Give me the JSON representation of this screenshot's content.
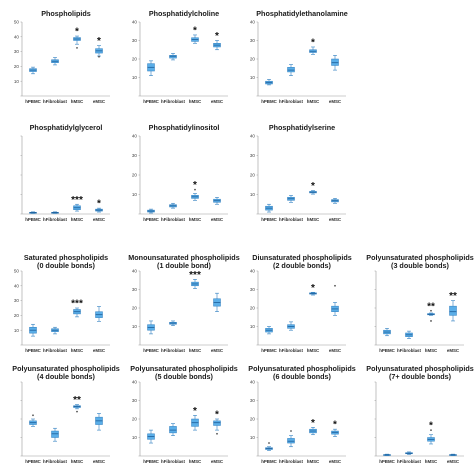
{
  "colors": {
    "box_fill": "#5aaee8",
    "box_stroke": "#2f7fc0",
    "median": "#1d5f9a",
    "axis": "#9a9a9a",
    "outlier": "#555555"
  },
  "chart_data": [
    {
      "type": "box",
      "title": [
        "Phospholipids"
      ],
      "ylim": [
        0,
        50
      ],
      "yticks": [
        "",
        "10",
        "20",
        "30",
        "40",
        "50"
      ],
      "categories": [
        "hPBMC",
        "hFibroblast",
        "hMSC",
        "eMSC"
      ],
      "boxes": [
        {
          "min": 15,
          "q1": 16.5,
          "median": 17.5,
          "q3": 18.5,
          "max": 19.5
        },
        {
          "min": 21,
          "q1": 22.5,
          "median": 23.5,
          "q3": 24.5,
          "max": 26
        },
        {
          "min": 35,
          "q1": 37.5,
          "median": 38.5,
          "q3": 39.5,
          "max": 40.5
        },
        {
          "min": 27,
          "q1": 29,
          "median": 30.5,
          "q3": 32,
          "max": 34
        }
      ],
      "outliers": [
        {
          "cat": 2,
          "value": 32.5
        },
        {
          "cat": 3,
          "value": 26.5
        }
      ],
      "stars": [
        "",
        "",
        "*",
        "*"
      ]
    },
    {
      "type": "box",
      "title": [
        "Phosphatidylcholine"
      ],
      "ylim": [
        0,
        40
      ],
      "yticks": [
        "",
        "10",
        "20",
        "30",
        "40"
      ],
      "categories": [
        "hPBMC",
        "hFibroblast",
        "hMSC",
        "eMSC"
      ],
      "boxes": [
        {
          "min": 11,
          "q1": 13.5,
          "median": 15.5,
          "q3": 17.5,
          "max": 19
        },
        {
          "min": 19.5,
          "q1": 20.5,
          "median": 21.5,
          "q3": 22,
          "max": 23
        },
        {
          "min": 28.5,
          "q1": 29.5,
          "median": 30.5,
          "q3": 31.5,
          "max": 33
        },
        {
          "min": 25,
          "q1": 26.5,
          "median": 27.5,
          "q3": 28.5,
          "max": 30
        }
      ],
      "outliers": [],
      "stars": [
        "",
        "",
        "*",
        "*"
      ]
    },
    {
      "type": "box",
      "title": [
        "Phosphatidylethanolamine"
      ],
      "ylim": [
        0,
        40
      ],
      "yticks": [
        "",
        "10",
        "20",
        "30",
        "40"
      ],
      "categories": [
        "hPBMC",
        "hFibroblast",
        "hMSC",
        "eMSC"
      ],
      "boxes": [
        {
          "min": 6,
          "q1": 6.5,
          "median": 7.2,
          "q3": 8,
          "max": 9
        },
        {
          "min": 11,
          "q1": 13,
          "median": 14,
          "q3": 15.5,
          "max": 17
        },
        {
          "min": 22.5,
          "q1": 23.5,
          "median": 24.2,
          "q3": 25,
          "max": 26.5
        },
        {
          "min": 14,
          "q1": 16.5,
          "median": 18,
          "q3": 20,
          "max": 22
        }
      ],
      "outliers": [],
      "stars": [
        "",
        "",
        "*",
        ""
      ]
    },
    {
      "type": "box",
      "title": [
        "Phosphatidylglycerol"
      ],
      "ylim": [
        0,
        40
      ],
      "yticks": [
        "",
        "",
        "",
        "",
        ""
      ],
      "categories": [
        "hPBMC",
        "hFibroblast",
        "hMSC",
        "eMSC"
      ],
      "boxes": [
        {
          "min": 0.3,
          "q1": 0.5,
          "median": 0.7,
          "q3": 0.9,
          "max": 1.1
        },
        {
          "min": 0.3,
          "q1": 0.5,
          "median": 0.7,
          "q3": 0.9,
          "max": 1.1
        },
        {
          "min": 1.5,
          "q1": 2.2,
          "median": 3.2,
          "q3": 4.2,
          "max": 5
        },
        {
          "min": 1,
          "q1": 1.5,
          "median": 2,
          "q3": 2.5,
          "max": 3
        }
      ],
      "outliers": [],
      "stars": [
        "",
        "",
        "***",
        "*"
      ]
    },
    {
      "type": "box",
      "title": [
        "Phosphatidylinositol"
      ],
      "ylim": [
        0,
        40
      ],
      "yticks": [
        "",
        "10",
        "20",
        "30",
        "40"
      ],
      "categories": [
        "hPBMC",
        "hFibroblast",
        "hMSC",
        "eMSC"
      ],
      "boxes": [
        {
          "min": 0.5,
          "q1": 1,
          "median": 1.5,
          "q3": 2,
          "max": 2.5
        },
        {
          "min": 3,
          "q1": 3.6,
          "median": 4.2,
          "q3": 4.8,
          "max": 5.5
        },
        {
          "min": 7,
          "q1": 8,
          "median": 8.8,
          "q3": 9.6,
          "max": 10.5
        },
        {
          "min": 5,
          "q1": 6,
          "median": 6.8,
          "q3": 7.6,
          "max": 8.5
        }
      ],
      "outliers": [
        {
          "cat": 2,
          "value": 12.5
        }
      ],
      "stars": [
        "",
        "",
        "*",
        ""
      ]
    },
    {
      "type": "box",
      "title": [
        "Phosphatidylserine"
      ],
      "ylim": [
        0,
        40
      ],
      "yticks": [
        "",
        "10",
        "20",
        "30",
        "40"
      ],
      "categories": [
        "hPBMC",
        "hFibroblast",
        "hMSC",
        "eMSC"
      ],
      "boxes": [
        {
          "min": 1,
          "q1": 2,
          "median": 3,
          "q3": 4,
          "max": 5
        },
        {
          "min": 6,
          "q1": 7,
          "median": 7.8,
          "q3": 8.6,
          "max": 9.5
        },
        {
          "min": 10.2,
          "q1": 10.8,
          "median": 11.2,
          "q3": 11.6,
          "max": 12
        },
        {
          "min": 5.5,
          "q1": 6.2,
          "median": 6.8,
          "q3": 7.4,
          "max": 8
        }
      ],
      "outliers": [],
      "stars": [
        "",
        "",
        "*",
        ""
      ]
    },
    {
      "type": "box",
      "title": [
        "Saturated phospholipids",
        "(0 double bonds)"
      ],
      "ylim": [
        0,
        50
      ],
      "yticks": [
        "",
        "10",
        "20",
        "30",
        "40",
        "50"
      ],
      "categories": [
        "hPBMC",
        "hFibroblast",
        "hMSC",
        "eMSC"
      ],
      "boxes": [
        {
          "min": 6,
          "q1": 8,
          "median": 10,
          "q3": 12,
          "max": 14
        },
        {
          "min": 7.5,
          "q1": 9,
          "median": 10,
          "q3": 11,
          "max": 12
        },
        {
          "min": 19,
          "q1": 21,
          "median": 22.5,
          "q3": 24,
          "max": 25
        },
        {
          "min": 16,
          "q1": 18.5,
          "median": 20.5,
          "q3": 22.5,
          "max": 26
        }
      ],
      "outliers": [],
      "stars": [
        "",
        "",
        "***",
        ""
      ]
    },
    {
      "type": "box",
      "title": [
        "Monounsaturated phospholipids",
        "(1 double bond)"
      ],
      "ylim": [
        0,
        40
      ],
      "yticks": [
        "",
        "10",
        "20",
        "30",
        "40"
      ],
      "categories": [
        "hPBMC",
        "hFibroblast",
        "hMSC",
        "eMSC"
      ],
      "boxes": [
        {
          "min": 6,
          "q1": 8,
          "median": 9.5,
          "q3": 11,
          "max": 13
        },
        {
          "min": 10.5,
          "q1": 11.2,
          "median": 11.8,
          "q3": 12.3,
          "max": 13
        },
        {
          "min": 30.5,
          "q1": 32,
          "median": 33,
          "q3": 34,
          "max": 35.5
        },
        {
          "min": 18,
          "q1": 21,
          "median": 23,
          "q3": 25,
          "max": 28
        }
      ],
      "outliers": [],
      "stars": [
        "",
        "",
        "***",
        ""
      ]
    },
    {
      "type": "box",
      "title": [
        "Diunsaturated phospholipids",
        "(2 double bonds)"
      ],
      "ylim": [
        0,
        40
      ],
      "yticks": [
        "",
        "10",
        "20",
        "30",
        "40"
      ],
      "categories": [
        "hPBMC",
        "hFibroblast",
        "hMSC",
        "eMSC"
      ],
      "boxes": [
        {
          "min": 6,
          "q1": 7,
          "median": 8,
          "q3": 9,
          "max": 10
        },
        {
          "min": 8,
          "q1": 9,
          "median": 10,
          "q3": 11,
          "max": 12.5
        },
        {
          "min": 27,
          "q1": 27.5,
          "median": 27.8,
          "q3": 28.2,
          "max": 28.5
        },
        {
          "min": 16,
          "q1": 18,
          "median": 19.5,
          "q3": 21,
          "max": 23
        }
      ],
      "outliers": [
        {
          "cat": 3,
          "value": 32
        }
      ],
      "stars": [
        "",
        "",
        "*",
        ""
      ]
    },
    {
      "type": "box",
      "title": [
        "Polyunsaturated phospholipids",
        "(3 double bonds)"
      ],
      "ylim": [
        0,
        40
      ],
      "yticks": [
        "",
        "",
        "",
        "",
        ""
      ],
      "categories": [
        "hPBMC",
        "hFibroblast",
        "hMSC",
        "eMSC"
      ],
      "boxes": [
        {
          "min": 5,
          "q1": 6,
          "median": 7,
          "q3": 8,
          "max": 9
        },
        {
          "min": 3.5,
          "q1": 4.5,
          "median": 5.5,
          "q3": 6.5,
          "max": 7.5
        },
        {
          "min": 16,
          "q1": 16.3,
          "median": 16.6,
          "q3": 17,
          "max": 17.3
        },
        {
          "min": 13,
          "q1": 16,
          "median": 18,
          "q3": 21,
          "max": 24
        }
      ],
      "outliers": [
        {
          "cat": 2,
          "value": 13
        },
        {
          "cat": 2,
          "value": 18.5
        }
      ],
      "stars": [
        "",
        "",
        "**",
        "**"
      ]
    },
    {
      "type": "box",
      "title": [
        "Polyunsaturated phospholipids",
        "(4 double bonds)"
      ],
      "ylim": [
        0,
        40
      ],
      "yticks": [
        "",
        "",
        "",
        "",
        ""
      ],
      "categories": [
        "hPBMC",
        "hFibroblast",
        "hMSC",
        "eMSC"
      ],
      "boxes": [
        {
          "min": 16,
          "q1": 17,
          "median": 18,
          "q3": 19,
          "max": 20
        },
        {
          "min": 8,
          "q1": 10,
          "median": 12,
          "q3": 13.5,
          "max": 15
        },
        {
          "min": 25.5,
          "q1": 26.2,
          "median": 26.8,
          "q3": 27.2,
          "max": 27.8
        },
        {
          "min": 14,
          "q1": 17,
          "median": 19,
          "q3": 21,
          "max": 23
        }
      ],
      "outliers": [
        {
          "cat": 0,
          "value": 22
        },
        {
          "cat": 2,
          "value": 24
        }
      ],
      "stars": [
        "",
        "",
        "**",
        ""
      ]
    },
    {
      "type": "box",
      "title": [
        "Polyunsaturated phospholipids",
        "(5 double bonds)"
      ],
      "ylim": [
        0,
        40
      ],
      "yticks": [
        "",
        "10",
        "20",
        "30",
        "40"
      ],
      "categories": [
        "hPBMC",
        "hFibroblast",
        "hMSC",
        "eMSC"
      ],
      "boxes": [
        {
          "min": 7,
          "q1": 9,
          "median": 10.5,
          "q3": 12,
          "max": 14
        },
        {
          "min": 11,
          "q1": 12.5,
          "median": 14,
          "q3": 16,
          "max": 17.5
        },
        {
          "min": 14,
          "q1": 16,
          "median": 18,
          "q3": 20,
          "max": 22
        },
        {
          "min": 14,
          "q1": 16.5,
          "median": 18,
          "q3": 19,
          "max": 20
        }
      ],
      "outliers": [
        {
          "cat": 3,
          "value": 12
        }
      ],
      "stars": [
        "",
        "",
        "*",
        "*"
      ]
    },
    {
      "type": "box",
      "title": [
        "Polyunsaturated phospholipids",
        "(6 double bonds)"
      ],
      "ylim": [
        0,
        40
      ],
      "yticks": [
        "",
        "10",
        "20",
        "30",
        "40"
      ],
      "categories": [
        "hPBMC",
        "hFibroblast",
        "hMSC",
        "eMSC"
      ],
      "boxes": [
        {
          "min": 3,
          "q1": 3.5,
          "median": 4,
          "q3": 4.5,
          "max": 5
        },
        {
          "min": 5,
          "q1": 7,
          "median": 8,
          "q3": 9.5,
          "max": 11
        },
        {
          "min": 11.5,
          "q1": 12.5,
          "median": 13.5,
          "q3": 14.5,
          "max": 15.5
        },
        {
          "min": 10.5,
          "q1": 11.8,
          "median": 12.8,
          "q3": 13.5,
          "max": 14.5
        }
      ],
      "outliers": [
        {
          "cat": 0,
          "value": 7
        },
        {
          "cat": 1,
          "value": 13.5
        }
      ],
      "stars": [
        "",
        "",
        "*",
        "*"
      ]
    },
    {
      "type": "box",
      "title": [
        "Polyunsaturated phospholipids",
        "(7+ double bonds)"
      ],
      "ylim": [
        0,
        40
      ],
      "yticks": [
        "",
        "",
        "",
        "",
        ""
      ],
      "categories": [
        "hPBMC",
        "hFibroblast",
        "hMSC",
        "eMSC"
      ],
      "boxes": [
        {
          "min": 0.2,
          "q1": 0.4,
          "median": 0.6,
          "q3": 0.8,
          "max": 1
        },
        {
          "min": 0.8,
          "q1": 1.2,
          "median": 1.5,
          "q3": 1.8,
          "max": 2.2
        },
        {
          "min": 6.5,
          "q1": 8,
          "median": 9,
          "q3": 10,
          "max": 11.5
        },
        {
          "min": 0.2,
          "q1": 0.4,
          "median": 0.6,
          "q3": 0.8,
          "max": 1
        }
      ],
      "outliers": [
        {
          "cat": 2,
          "value": 14
        }
      ],
      "stars": [
        "",
        "",
        "*",
        ""
      ]
    }
  ]
}
